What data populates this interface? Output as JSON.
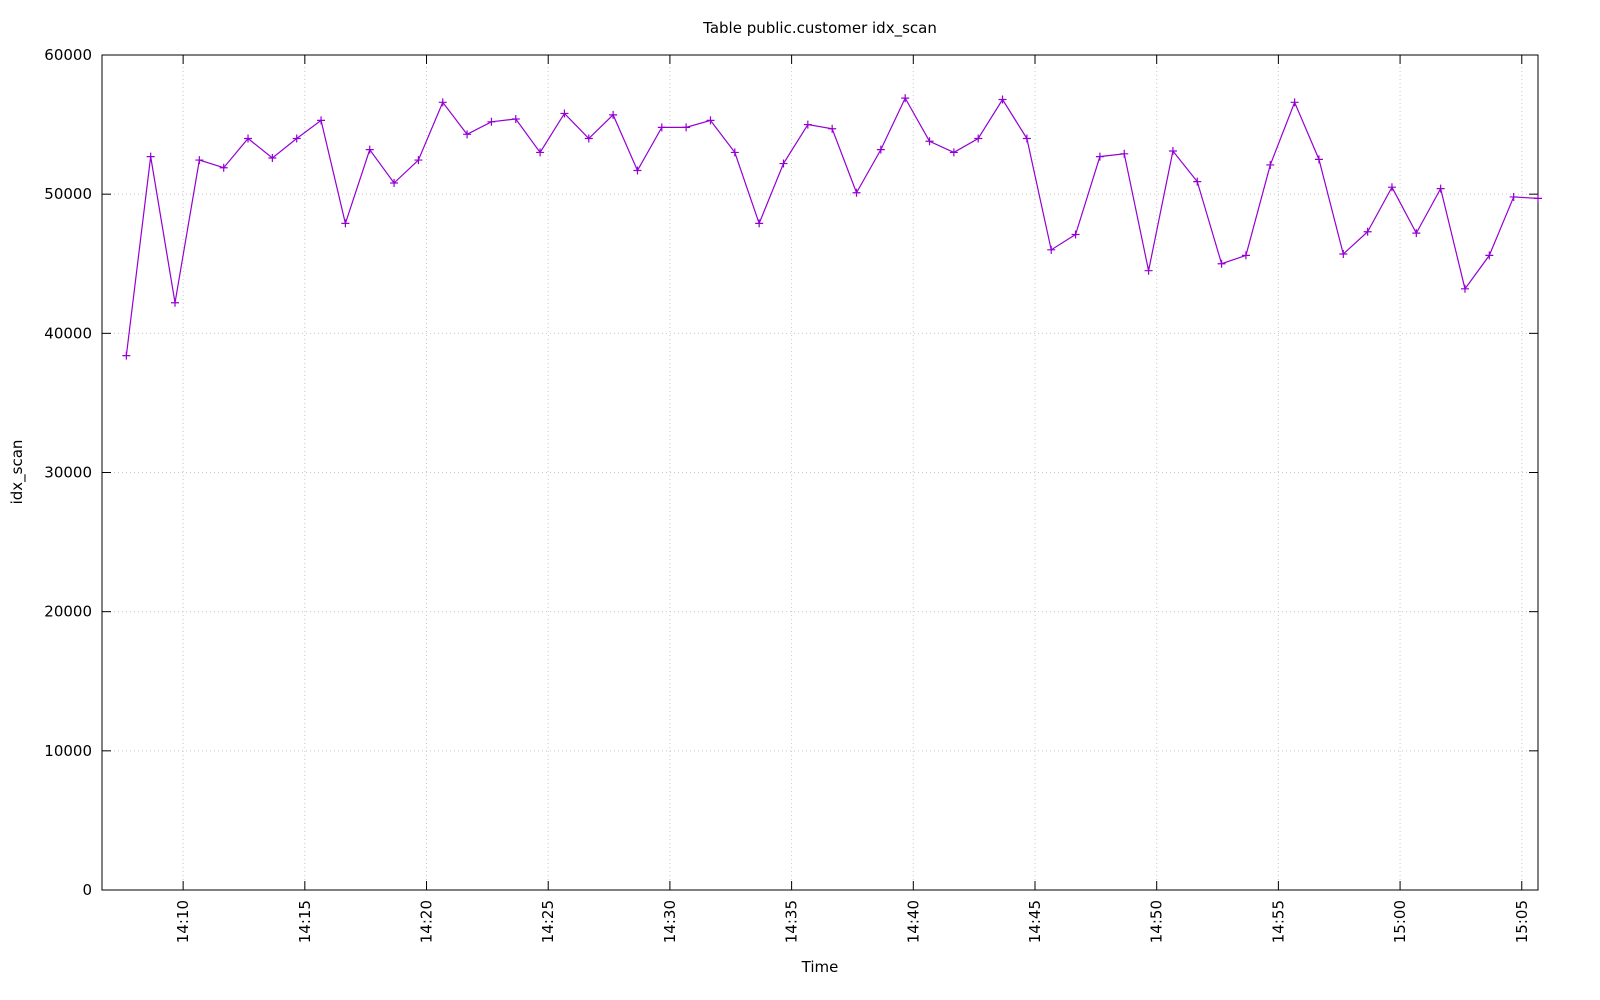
{
  "chart_data": {
    "type": "line",
    "title": "Table public.customer idx_scan",
    "x_label": "Time",
    "y_label": "idx_scan",
    "x": [
      "14:07:40",
      "14:08:40",
      "14:09:40",
      "14:10:40",
      "14:11:40",
      "14:12:40",
      "14:13:40",
      "14:14:40",
      "14:15:40",
      "14:16:40",
      "14:17:40",
      "14:18:40",
      "14:19:40",
      "14:20:40",
      "14:21:40",
      "14:22:40",
      "14:23:40",
      "14:24:40",
      "14:25:40",
      "14:26:40",
      "14:27:40",
      "14:28:40",
      "14:29:40",
      "14:30:40",
      "14:31:40",
      "14:32:40",
      "14:33:40",
      "14:34:40",
      "14:35:40",
      "14:36:40",
      "14:37:40",
      "14:38:40",
      "14:39:40",
      "14:40:40",
      "14:41:40",
      "14:42:40",
      "14:43:40",
      "14:44:40",
      "14:45:40",
      "14:46:40",
      "14:47:40",
      "14:48:40",
      "14:49:40",
      "14:50:40",
      "14:51:40",
      "14:52:40",
      "14:53:40",
      "14:54:40",
      "14:55:40",
      "14:56:40",
      "14:57:40",
      "14:58:40",
      "14:59:40",
      "15:00:40",
      "15:01:40",
      "15:02:40",
      "15:03:40",
      "15:04:40",
      "15:05:40"
    ],
    "series": [
      {
        "color": "#9400d3",
        "values": [
          38400,
          52700,
          42200,
          52450,
          51900,
          54000,
          52600,
          54000,
          55300,
          47900,
          53200,
          50800,
          52450,
          56600,
          54300,
          55200,
          55400,
          53000,
          55800,
          54000,
          55700,
          51700,
          54800,
          54800,
          55300,
          53000,
          47900,
          52200,
          55000,
          54700,
          50100,
          53200,
          56900,
          53800,
          53000,
          54000,
          56800,
          54000,
          46000,
          47100,
          52700,
          52900,
          44500,
          53100,
          50900,
          45000,
          45600,
          52100,
          56600,
          52500,
          45700,
          47300,
          50500,
          47200,
          50400,
          43200,
          45600,
          49800,
          49700
        ]
      }
    ],
    "xlim": [
      "14:06:40",
      "15:05:40"
    ],
    "xticks": [
      "14:10",
      "14:15",
      "14:20",
      "14:25",
      "14:30",
      "14:35",
      "14:40",
      "14:45",
      "14:50",
      "14:55",
      "15:00",
      "15:05"
    ],
    "ylim": [
      0,
      60000
    ],
    "yticks": [
      0,
      10000,
      20000,
      30000,
      40000,
      50000,
      60000
    ],
    "grid": true
  }
}
